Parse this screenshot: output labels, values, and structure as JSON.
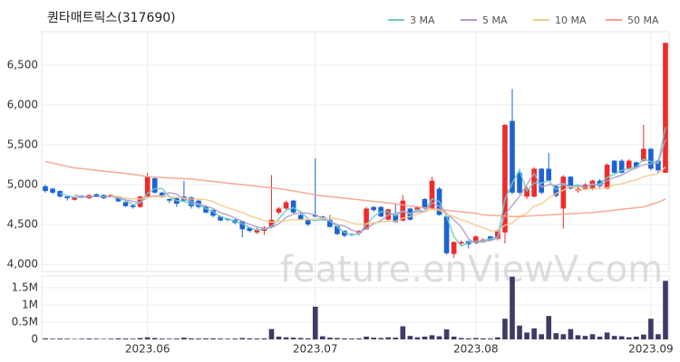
{
  "chart_data": [
    {
      "type": "candlestick",
      "title": "퀀타매트릭스(317690)",
      "watermark": "feature.enViewV.com",
      "up_color": "#ef2b2b",
      "down_color": "#1c63d5",
      "grid": true,
      "legend": "top-right",
      "xlim": [
        -0.5,
        85.5
      ],
      "ylim": [
        3910,
        6920
      ],
      "yticks": [
        {
          "value": 4000,
          "label": "4,000"
        },
        {
          "value": 4500,
          "label": "4,500"
        },
        {
          "value": 5000,
          "label": "5,000"
        },
        {
          "value": 5500,
          "label": "5,500"
        },
        {
          "value": 6000,
          "label": "6,000"
        },
        {
          "value": 6500,
          "label": "6,500"
        }
      ],
      "open": [
        4980,
        4950,
        4920,
        4850,
        4810,
        4860,
        4830,
        4880,
        4870,
        4850,
        4850,
        4780,
        4740,
        4720,
        4850,
        5080,
        4900,
        4820,
        4830,
        4850,
        4840,
        4800,
        4730,
        4680,
        4600,
        4570,
        4560,
        4540,
        4460,
        4400,
        4420,
        4470,
        4650,
        4700,
        4800,
        4620,
        4560,
        4620,
        4600,
        4560,
        4480,
        4420,
        4380,
        4390,
        4440,
        4720,
        4720,
        4560,
        4620,
        4550,
        4700,
        4680,
        4820,
        4700,
        4950,
        4600,
        4130,
        4260,
        4290,
        4270,
        4280,
        4350,
        4320,
        4400,
        5800,
        5150,
        4850,
        4850,
        5200,
        5200,
        4980,
        4700,
        5100,
        4920,
        4950,
        4950,
        5050,
        4950,
        5300,
        5300,
        5200,
        5280,
        5300,
        5450,
        5300,
        5150
      ],
      "high": [
        5000,
        4960,
        4930,
        4860,
        4850,
        4870,
        4880,
        4890,
        4880,
        4880,
        4860,
        4790,
        4750,
        4860,
        5150,
        5100,
        4910,
        4830,
        4840,
        5050,
        4850,
        4810,
        4740,
        4690,
        4610,
        4580,
        4570,
        4550,
        4470,
        4460,
        4480,
        5120,
        4720,
        4800,
        4810,
        4640,
        4570,
        5330,
        4610,
        4620,
        4490,
        4430,
        4390,
        4430,
        4720,
        4730,
        4730,
        4700,
        4760,
        4870,
        4710,
        4730,
        4830,
        5100,
        4970,
        4620,
        4290,
        4300,
        4300,
        4360,
        4330,
        4360,
        4440,
        5760,
        6200,
        5200,
        4980,
        5220,
        5210,
        5400,
        5000,
        5120,
        5110,
        4980,
        5020,
        5060,
        5070,
        5270,
        5310,
        5320,
        5320,
        5290,
        5750,
        5460,
        5320,
        6780
      ],
      "low": [
        4900,
        4880,
        4840,
        4800,
        4800,
        4830,
        4820,
        4840,
        4820,
        4840,
        4780,
        4720,
        4700,
        4710,
        4840,
        4890,
        4830,
        4770,
        4720,
        4780,
        4700,
        4700,
        4640,
        4590,
        4540,
        4540,
        4500,
        4340,
        4400,
        4380,
        4370,
        4460,
        4630,
        4690,
        4640,
        4550,
        4480,
        4590,
        4550,
        4460,
        4370,
        4340,
        4350,
        4360,
        4430,
        4660,
        4590,
        4550,
        4520,
        4540,
        4550,
        4670,
        4690,
        4690,
        4610,
        4120,
        4080,
        4240,
        4200,
        4260,
        4270,
        4290,
        4300,
        4260,
        4880,
        4880,
        4820,
        4840,
        4880,
        5040,
        4840,
        4450,
        4940,
        4900,
        4940,
        4930,
        4960,
        4940,
        5140,
        5140,
        5190,
        5200,
        5290,
        5180,
        5150,
        5150
      ],
      "close": [
        4920,
        4900,
        4850,
        4830,
        4840,
        4840,
        4870,
        4850,
        4830,
        4870,
        4790,
        4730,
        4720,
        4850,
        5100,
        4900,
        4850,
        4800,
        4760,
        4800,
        4730,
        4720,
        4650,
        4610,
        4550,
        4560,
        4520,
        4440,
        4420,
        4430,
        4460,
        4560,
        4700,
        4780,
        4650,
        4560,
        4500,
        4600,
        4570,
        4470,
        4380,
        4360,
        4370,
        4420,
        4700,
        4680,
        4600,
        4690,
        4530,
        4800,
        4560,
        4720,
        4700,
        5050,
        4620,
        4140,
        4280,
        4280,
        4250,
        4350,
        4310,
        4300,
        4420,
        5750,
        4900,
        4900,
        4950,
        5200,
        4900,
        5050,
        4860,
        5100,
        4950,
        4950,
        5000,
        5050,
        4980,
        5250,
        5150,
        5150,
        5300,
        5220,
        5450,
        5200,
        5180,
        6780
      ],
      "series": [
        {
          "name": "3 MA",
          "color": "#6ccac9",
          "values": [
            null,
            null,
            4890,
            4860,
            4840,
            4840,
            4850,
            4850,
            4850,
            4850,
            4830,
            4800,
            4750,
            4770,
            4890,
            4950,
            4950,
            4850,
            4800,
            4790,
            4760,
            4750,
            4700,
            4660,
            4600,
            4570,
            4540,
            4510,
            4460,
            4430,
            4440,
            4480,
            4570,
            4680,
            4710,
            4660,
            4570,
            4550,
            4560,
            4550,
            4470,
            4400,
            4370,
            4380,
            4500,
            4600,
            4660,
            4660,
            4610,
            4670,
            4630,
            4690,
            4660,
            4820,
            4790,
            4600,
            4350,
            4230,
            4270,
            4290,
            4300,
            4320,
            4340,
            4820,
            5020,
            5180,
            4920,
            5020,
            5020,
            5050,
            4940,
            5000,
            4970,
            5000,
            4970,
            5000,
            5010,
            5090,
            5130,
            5180,
            5200,
            5220,
            5320,
            5290,
            5280,
            5720
          ]
        },
        {
          "name": "5 MA",
          "color": "#b29dcc",
          "values": [
            null,
            null,
            null,
            null,
            4870,
            4850,
            4850,
            4850,
            4850,
            4850,
            4840,
            4810,
            4790,
            4780,
            4840,
            4860,
            4860,
            4900,
            4880,
            4820,
            4790,
            4760,
            4730,
            4700,
            4650,
            4620,
            4580,
            4540,
            4500,
            4470,
            4450,
            4460,
            4510,
            4590,
            4630,
            4650,
            4640,
            4620,
            4580,
            4540,
            4500,
            4480,
            4430,
            4400,
            4450,
            4510,
            4550,
            4620,
            4640,
            4660,
            4640,
            4660,
            4660,
            4770,
            4730,
            4640,
            4560,
            4470,
            4320,
            4260,
            4290,
            4300,
            4330,
            4630,
            4740,
            4850,
            5000,
            5140,
            4970,
            5000,
            4990,
            5020,
            4970,
            4980,
            4970,
            5010,
            4990,
            5050,
            5090,
            5120,
            5170,
            5210,
            5250,
            5260,
            5270,
            5570
          ]
        },
        {
          "name": "10 MA",
          "color": "#f6ca8c",
          "values": [
            null,
            null,
            null,
            null,
            null,
            null,
            null,
            null,
            null,
            4860,
            4850,
            4830,
            4820,
            4820,
            4840,
            4850,
            4850,
            4850,
            4840,
            4830,
            4820,
            4820,
            4810,
            4790,
            4740,
            4710,
            4680,
            4650,
            4610,
            4580,
            4550,
            4530,
            4540,
            4550,
            4560,
            4560,
            4560,
            4570,
            4580,
            4580,
            4570,
            4550,
            4520,
            4500,
            4510,
            4520,
            4530,
            4540,
            4540,
            4580,
            4600,
            4630,
            4660,
            4690,
            4680,
            4630,
            4600,
            4560,
            4530,
            4490,
            4460,
            4420,
            4420,
            4490,
            4520,
            4600,
            4640,
            4730,
            4760,
            4830,
            4890,
            4930,
            4980,
            4930,
            4940,
            4950,
            4950,
            4960,
            5000,
            5010,
            5040,
            5060,
            5100,
            5120,
            5140,
            5220
          ]
        },
        {
          "name": "50 MA",
          "color": "#f4a28c",
          "values": [
            5290,
            5270,
            5250,
            5230,
            5210,
            5200,
            5190,
            5180,
            5170,
            5160,
            5150,
            5140,
            5130,
            5115,
            5100,
            5095,
            5090,
            5085,
            5080,
            5075,
            5070,
            5060,
            5050,
            5040,
            5030,
            5020,
            5010,
            5000,
            4990,
            4980,
            4970,
            4960,
            4950,
            4935,
            4920,
            4905,
            4890,
            4870,
            4860,
            4850,
            4840,
            4830,
            4820,
            4810,
            4800,
            4790,
            4780,
            4770,
            4760,
            4745,
            4730,
            4720,
            4710,
            4700,
            4690,
            4680,
            4670,
            4660,
            4650,
            4640,
            4620,
            4615,
            4610,
            4605,
            4600,
            4600,
            4605,
            4610,
            4615,
            4620,
            4625,
            4630,
            4635,
            4640,
            4645,
            4650,
            4660,
            4670,
            4680,
            4690,
            4700,
            4710,
            4720,
            4750,
            4780,
            4820
          ]
        }
      ]
    },
    {
      "type": "bar",
      "color": "#3d3c66",
      "grid": true,
      "xlim": [
        -0.5,
        85.5
      ],
      "ylim": [
        0,
        1840000
      ],
      "yticks": [
        0,
        {
          "value": 500000,
          "label": "0.5M"
        },
        {
          "value": 1000000,
          "label": "1M"
        },
        {
          "value": 1500000,
          "label": "1.5M"
        }
      ],
      "xticks": [
        {
          "value": 14,
          "label": "2023.06"
        },
        {
          "value": 37,
          "label": "2023.07"
        },
        {
          "value": 59,
          "label": "2023.08"
        },
        {
          "value": 83,
          "label": "2023.09"
        }
      ],
      "values": [
        30000,
        20000,
        25000,
        20000,
        15000,
        20000,
        25000,
        20000,
        15000,
        20000,
        30000,
        25000,
        20000,
        40000,
        60000,
        40000,
        25000,
        20000,
        25000,
        50000,
        30000,
        25000,
        30000,
        30000,
        25000,
        20000,
        25000,
        40000,
        30000,
        25000,
        30000,
        300000,
        80000,
        60000,
        50000,
        40000,
        30000,
        950000,
        90000,
        50000,
        40000,
        30000,
        25000,
        30000,
        80000,
        50000,
        40000,
        60000,
        50000,
        380000,
        100000,
        60000,
        80000,
        120000,
        90000,
        290000,
        80000,
        40000,
        30000,
        40000,
        30000,
        25000,
        60000,
        600000,
        1820000,
        400000,
        200000,
        320000,
        150000,
        680000,
        180000,
        150000,
        300000,
        120000,
        100000,
        150000,
        80000,
        200000,
        100000,
        90000,
        60000,
        80000,
        140000,
        600000,
        150000,
        1700000
      ]
    }
  ]
}
